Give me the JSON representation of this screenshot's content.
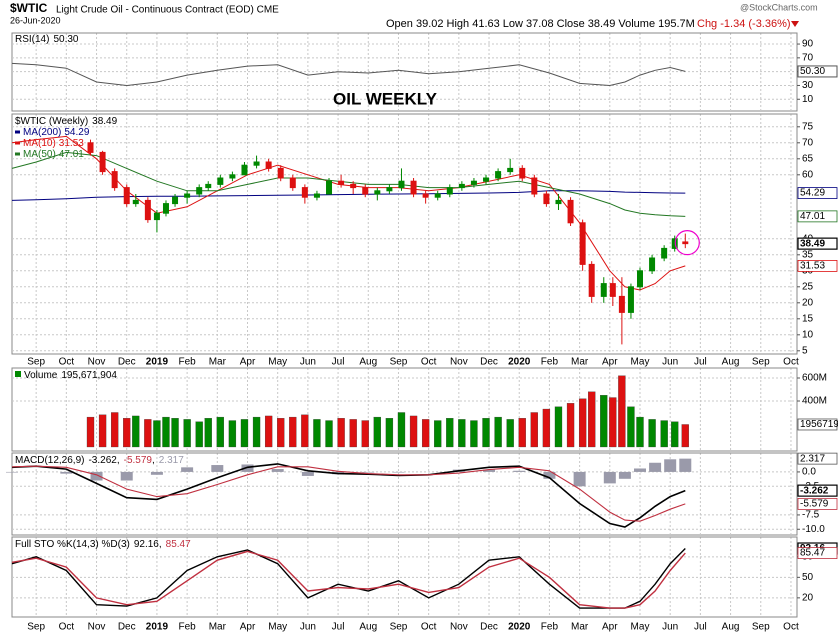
{
  "header": {
    "symbol": "$WTIC",
    "name": "Light Crude Oil - Continuous Contract (EOD) CME",
    "date": "26-Jun-2020",
    "quote": "Open 39.02 High 41.63 Low 37.08 Close 38.49 Volume 195.7M",
    "change": "Chg -1.34 (-3.36%)",
    "source": "@StockCharts.com"
  },
  "x_axis": {
    "xlim": [
      -0.8,
      25.2
    ],
    "xticks": [
      {
        "value": 0,
        "label": "Sep"
      },
      {
        "value": 1,
        "label": "Oct"
      },
      {
        "value": 2,
        "label": "Nov"
      },
      {
        "value": 3,
        "label": "Dec"
      },
      {
        "value": 4,
        "label": "2019"
      },
      {
        "value": 5,
        "label": "Feb"
      },
      {
        "value": 6,
        "label": "Mar"
      },
      {
        "value": 7,
        "label": "Apr"
      },
      {
        "value": 8,
        "label": "May"
      },
      {
        "value": 9,
        "label": "Jun"
      },
      {
        "value": 10,
        "label": "Jul"
      },
      {
        "value": 11,
        "label": "Aug"
      },
      {
        "value": 12,
        "label": "Sep"
      },
      {
        "value": 13,
        "label": "Oct"
      },
      {
        "value": 14,
        "label": "Nov"
      },
      {
        "value": 15,
        "label": "Dec"
      },
      {
        "value": 16,
        "label": "2020"
      },
      {
        "value": 17,
        "label": "Feb"
      },
      {
        "value": 18,
        "label": "Mar"
      },
      {
        "value": 19,
        "label": "Apr"
      },
      {
        "value": 20,
        "label": "May"
      },
      {
        "value": 21,
        "label": "Jun"
      },
      {
        "value": 22,
        "label": "Jul"
      },
      {
        "value": 23,
        "label": "Aug"
      },
      {
        "value": 24,
        "label": "Sep"
      },
      {
        "value": 25,
        "label": "Oct"
      }
    ]
  },
  "chart_data": [
    {
      "type": "line",
      "title": "RSI(14)",
      "annotation": "OIL WEEKLY",
      "ylim": [
        -7,
        106
      ],
      "yticks": [
        10,
        30,
        50,
        70,
        90
      ],
      "grid": true,
      "x": [
        -0.8,
        0,
        1,
        2,
        3,
        4,
        5,
        6,
        7,
        8,
        9,
        10,
        11,
        12,
        13,
        14,
        15,
        16,
        17,
        18,
        19,
        19.5,
        20,
        20.5,
        21,
        21.5
      ],
      "series": [
        {
          "color": "#555555",
          "values": [
            62,
            60,
            55,
            35,
            30,
            35,
            45,
            52,
            58,
            60,
            45,
            50,
            48,
            52,
            47,
            50,
            55,
            60,
            48,
            33,
            30,
            35,
            45,
            52,
            56,
            50.3
          ],
          "value_labels": [
            null,
            null,
            null,
            null,
            null,
            null,
            null,
            null,
            null,
            null,
            null,
            null,
            null,
            null,
            null,
            null,
            null,
            null,
            null,
            null,
            null,
            null,
            null,
            null,
            null,
            "50.30"
          ]
        }
      ]
    },
    {
      "type": "candlestick",
      "title": "$WTIC (Weekly)",
      "ylim": [
        4,
        79
      ],
      "yticks": [
        5,
        10,
        15,
        20,
        25,
        30,
        35,
        40,
        60,
        65,
        70,
        75
      ],
      "grid": true,
      "up_color": "#008800",
      "down_color": "#dd1111",
      "candles": {
        "x": [
          1.8,
          2.2,
          2.6,
          3.0,
          3.3,
          3.7,
          4.0,
          4.3,
          4.6,
          5.0,
          5.4,
          5.7,
          6.1,
          6.5,
          6.9,
          7.3,
          7.7,
          8.1,
          8.5,
          8.9,
          9.3,
          9.7,
          10.1,
          10.5,
          10.9,
          11.3,
          11.7,
          12.1,
          12.5,
          12.9,
          13.3,
          13.7,
          14.1,
          14.5,
          14.9,
          15.3,
          15.7,
          16.1,
          16.5,
          16.9,
          17.3,
          17.7,
          18.1,
          18.4,
          18.8,
          19.1,
          19.4,
          19.7,
          20.0,
          20.4,
          20.8,
          21.15,
          21.5
        ],
        "open": [
          70,
          67,
          61,
          56,
          51,
          52,
          46,
          48,
          51,
          53,
          54,
          56,
          57,
          59,
          60,
          63,
          64,
          62,
          59,
          56,
          53,
          54,
          58,
          57,
          56,
          54,
          55,
          56,
          58,
          54,
          53,
          54,
          56,
          57,
          58,
          59,
          61,
          62,
          59,
          54,
          51,
          52,
          45,
          32,
          22,
          26,
          22,
          17,
          25,
          30,
          34,
          37,
          39.02
        ],
        "high": [
          71,
          67.5,
          62,
          57,
          54,
          53,
          49,
          52,
          54,
          55,
          57,
          58,
          60,
          61,
          64,
          66,
          65,
          63,
          60,
          57,
          55,
          59,
          60,
          58,
          57,
          56,
          57,
          62,
          59,
          55,
          55,
          57,
          58,
          59,
          60,
          62,
          65,
          63,
          60,
          55,
          54,
          53,
          46,
          33,
          28,
          28,
          28,
          26,
          31,
          35,
          38,
          41,
          41.63
        ],
        "low": [
          66,
          60,
          55,
          50,
          50,
          45,
          42,
          47,
          50,
          51,
          53,
          55,
          56,
          58,
          60,
          62,
          61,
          58,
          55,
          51,
          52,
          54,
          56,
          54,
          53,
          52,
          54,
          55,
          53,
          51,
          52,
          53,
          55,
          56,
          57,
          58,
          60,
          58,
          53,
          50,
          49,
          44,
          30,
          20,
          20,
          19,
          7,
          15,
          24,
          29,
          33,
          36,
          37.08
        ],
        "close": [
          67,
          61,
          56,
          51,
          52,
          46,
          48,
          51,
          53,
          54,
          56,
          57,
          59,
          60,
          63,
          64,
          62,
          59,
          56,
          53,
          54,
          58,
          57,
          56,
          54,
          55,
          56,
          58,
          54,
          53,
          54,
          56,
          57,
          58,
          59,
          61,
          62,
          59,
          54,
          51,
          52,
          45,
          32,
          22,
          26,
          22,
          17,
          25,
          30,
          34,
          37,
          40,
          38.49
        ]
      },
      "x": [
        -0.8,
        0,
        1,
        2,
        3,
        4,
        5,
        6,
        7,
        8,
        9,
        10,
        11,
        12,
        13,
        14,
        15,
        16,
        17,
        18,
        19,
        19.5,
        20,
        20.5,
        21,
        21.5
      ],
      "series": [
        {
          "name": "MA(200)",
          "color": "#000080",
          "values": [
            52,
            52.2,
            52.5,
            53,
            53.2,
            53.3,
            53.3,
            53.4,
            53.5,
            53.6,
            53.7,
            53.8,
            53.9,
            54,
            54.1,
            54.2,
            54.3,
            54.5,
            55,
            55,
            54.8,
            54.6,
            54.5,
            54.4,
            54.3,
            54.29
          ]
        },
        {
          "name": "MA(10)",
          "color": "#dd1111",
          "values": [
            70,
            71,
            72,
            65,
            55,
            48,
            50,
            55,
            60,
            63,
            60,
            57,
            56,
            56,
            55,
            56,
            58,
            60,
            57,
            45,
            30,
            25,
            24,
            26,
            30,
            31.53
          ]
        },
        {
          "name": "MA(50)",
          "color": "#227722",
          "values": [
            62,
            64,
            67,
            66,
            62,
            58,
            55,
            55,
            57,
            59,
            59,
            58,
            57,
            57,
            56,
            56,
            57,
            58,
            56,
            54,
            51,
            49,
            48,
            47.5,
            47.2,
            47.01
          ]
        }
      ]
    },
    {
      "type": "bar",
      "title": "Volume",
      "ylim": [
        -35000000,
        687000000
      ],
      "yticks": [
        {
          "value": 400000000,
          "label": "400M"
        },
        {
          "value": 600000000,
          "label": "600M"
        }
      ],
      "grid": true,
      "x": [
        1.8,
        2.2,
        2.6,
        3.0,
        3.3,
        3.7,
        4.0,
        4.3,
        4.6,
        5.0,
        5.4,
        5.7,
        6.1,
        6.5,
        6.9,
        7.3,
        7.7,
        8.1,
        8.5,
        8.9,
        9.3,
        9.7,
        10.1,
        10.5,
        10.9,
        11.3,
        11.7,
        12.1,
        12.5,
        12.9,
        13.3,
        13.7,
        14.1,
        14.5,
        14.9,
        15.3,
        15.7,
        16.1,
        16.5,
        16.9,
        17.3,
        17.7,
        18.1,
        18.4,
        18.8,
        19.1,
        19.4,
        19.7,
        20.0,
        20.4,
        20.8,
        21.15,
        21.5
      ],
      "values": [
        260000000,
        280000000,
        300000000,
        250000000,
        270000000,
        240000000,
        230000000,
        260000000,
        250000000,
        240000000,
        220000000,
        250000000,
        260000000,
        230000000,
        240000000,
        260000000,
        270000000,
        250000000,
        260000000,
        280000000,
        240000000,
        230000000,
        250000000,
        240000000,
        230000000,
        260000000,
        250000000,
        300000000,
        270000000,
        240000000,
        230000000,
        250000000,
        240000000,
        230000000,
        250000000,
        260000000,
        240000000,
        250000000,
        300000000,
        330000000,
        350000000,
        380000000,
        420000000,
        480000000,
        450000000,
        430000000,
        620000000,
        350000000,
        260000000,
        240000000,
        230000000,
        220000000,
        195671904
      ],
      "value_labels": [
        null,
        null,
        null,
        null,
        null,
        null,
        null,
        null,
        null,
        null,
        null,
        null,
        null,
        null,
        null,
        null,
        null,
        null,
        null,
        null,
        null,
        null,
        null,
        null,
        null,
        null,
        null,
        null,
        null,
        null,
        null,
        null,
        null,
        null,
        null,
        null,
        null,
        null,
        null,
        null,
        null,
        null,
        null,
        null,
        null,
        null,
        null,
        null,
        null,
        null,
        null,
        null,
        "195,671,904"
      ]
    },
    {
      "type": "macd",
      "title": "MACD(12,26,9)",
      "separator": ",",
      "ylim": [
        -11,
        3.3
      ],
      "yticks": [
        {
          "value": 0,
          "label": "0.0"
        },
        -2.5,
        -7.5,
        {
          "value": -10,
          "label": "-10.0"
        }
      ],
      "grid": true,
      "x": [
        -0.8,
        0,
        1,
        2,
        3,
        4,
        5,
        6,
        7,
        8,
        9,
        10,
        11,
        12,
        13,
        14,
        15,
        16,
        17,
        18,
        19,
        19.5,
        20,
        20.5,
        21,
        21.5
      ],
      "series": [
        {
          "color": "#000000",
          "values": [
            0.8,
            1.0,
            0.5,
            -2.0,
            -4.5,
            -4.8,
            -3.0,
            -1.0,
            0.8,
            1.4,
            0.2,
            -0.3,
            -0.4,
            -0.6,
            -0.5,
            0.2,
            0.8,
            1.0,
            -1.0,
            -5.5,
            -9.0,
            -9.6,
            -8.0,
            -6.0,
            -4.3,
            -3.262
          ]
        },
        {
          "color": "#c03040",
          "values": [
            0.9,
            1.0,
            0.8,
            -0.5,
            -3.0,
            -4.3,
            -3.8,
            -2.2,
            -0.5,
            0.9,
            0.9,
            0.1,
            -0.3,
            -0.5,
            -0.5,
            -0.2,
            0.4,
            0.8,
            0.2,
            -3.0,
            -7.0,
            -8.4,
            -8.6,
            -7.6,
            -6.5,
            -5.579
          ]
        },
        {
          "color": "#9a9aaa",
          "style": "bar",
          "values": [
            -0.1,
            0,
            -0.3,
            -1.5,
            -1.5,
            -0.5,
            0.8,
            1.2,
            1.3,
            0.5,
            -0.7,
            -0.4,
            -0.1,
            -0.1,
            0,
            0.4,
            0.4,
            0.2,
            -1.2,
            -2.5,
            -2.0,
            -1.2,
            0.6,
            1.6,
            2.2,
            2.317
          ]
        }
      ]
    },
    {
      "type": "line",
      "title": "Full STO %K(14,3) %D(3)",
      "separator": ",",
      "ylim": [
        -8,
        109
      ],
      "yticks": [
        20,
        50,
        80
      ],
      "grid": true,
      "x": [
        -0.8,
        0,
        1,
        2,
        3,
        4,
        5,
        6,
        7,
        8,
        9,
        10,
        11,
        12,
        13,
        14,
        15,
        16,
        17,
        18,
        19,
        19.5,
        20,
        20.5,
        21,
        21.5
      ],
      "series": [
        {
          "color": "#000000",
          "values": [
            70,
            80,
            60,
            10,
            8,
            20,
            60,
            80,
            90,
            70,
            20,
            40,
            30,
            45,
            20,
            40,
            75,
            80,
            40,
            5,
            5,
            5,
            15,
            40,
            70,
            92.16
          ]
        },
        {
          "color": "#c03040",
          "values": [
            72,
            78,
            65,
            20,
            10,
            15,
            45,
            75,
            88,
            75,
            30,
            35,
            33,
            40,
            28,
            35,
            65,
            78,
            50,
            10,
            5,
            5,
            10,
            30,
            60,
            85.47
          ]
        }
      ]
    }
  ]
}
